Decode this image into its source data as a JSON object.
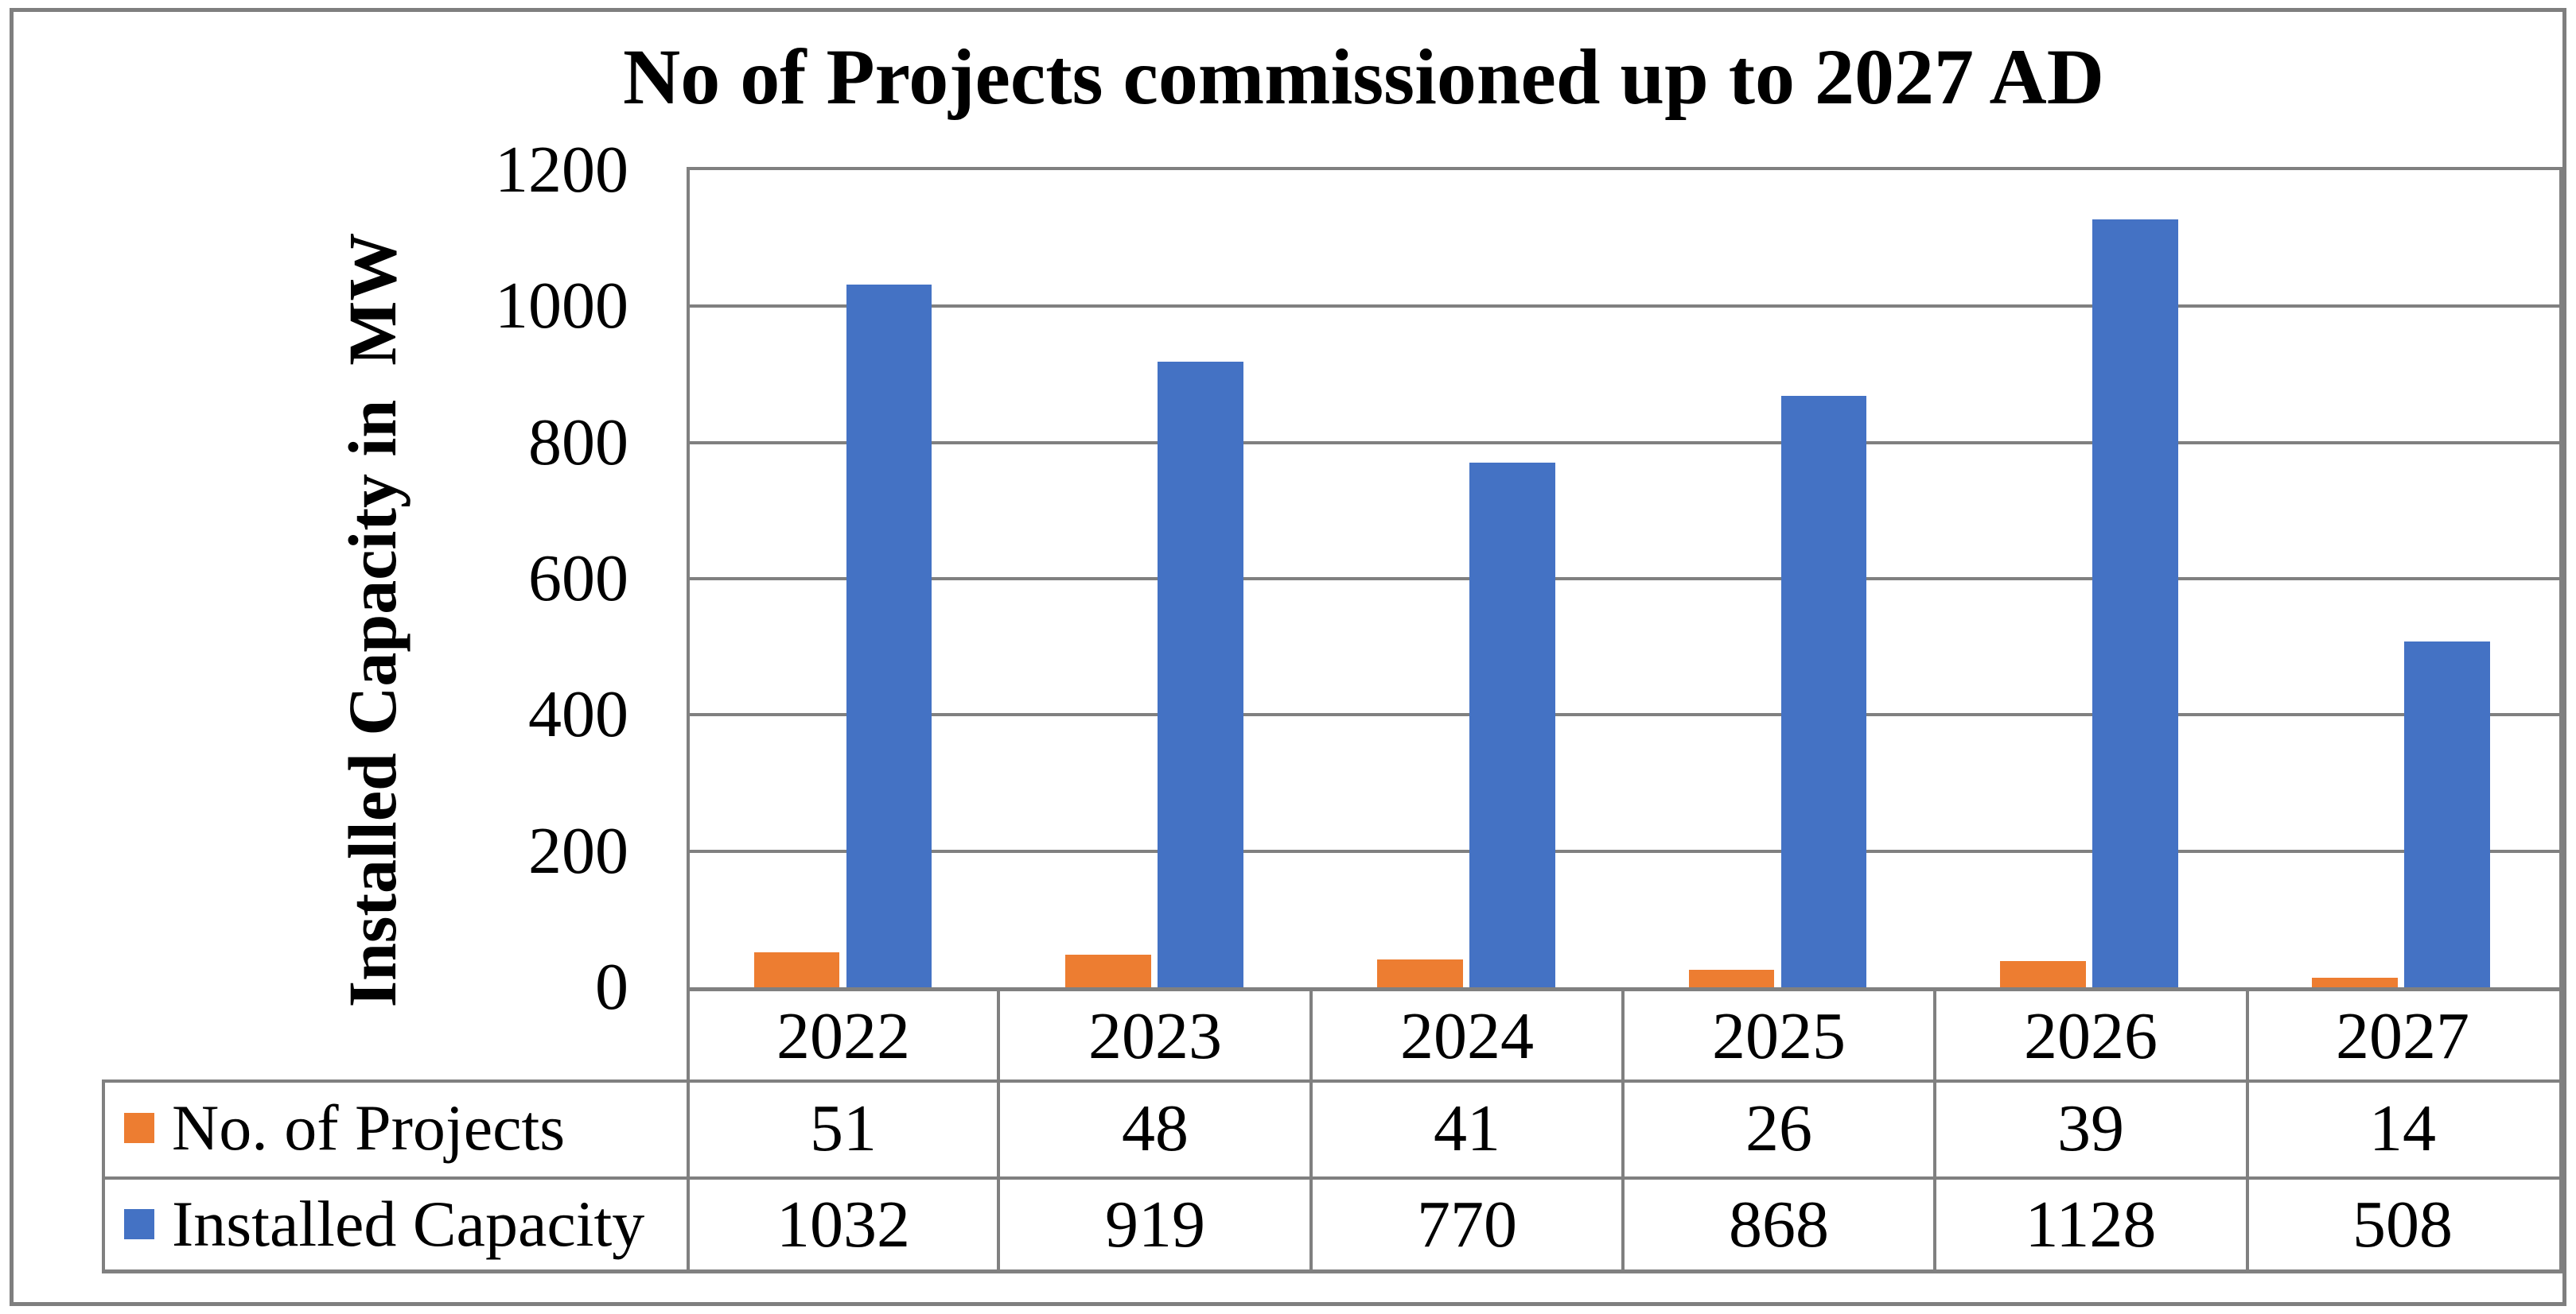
{
  "title": "No of Projects commissioned up to 2027 AD",
  "y_axis": {
    "title": "Installed Capacity in  MW",
    "ticks": [
      "1200",
      "1000",
      "800",
      "600",
      "400",
      "200",
      "0"
    ]
  },
  "table": {
    "rows": [
      {
        "label": "No. of Projects",
        "key_color": "#ED7D31",
        "values": [
          "51",
          "48",
          "41",
          "26",
          "39",
          "14"
        ]
      },
      {
        "label": "Installed Capacity",
        "key_color": "#4472C4",
        "values": [
          "1032",
          "919",
          "770",
          "868",
          "1128",
          "508"
        ]
      }
    ]
  },
  "colors": {
    "projects_bar": "#ED7D31",
    "capacity_bar": "#4472C4",
    "gridline": "#808080",
    "frame_border": "#7F7F7F",
    "text": "#000000",
    "background": "#FFFFFF"
  },
  "chart_data": {
    "type": "bar",
    "title": "No of Projects commissioned up to 2027 AD",
    "categories": [
      "2022",
      "2023",
      "2024",
      "2025",
      "2026",
      "2027"
    ],
    "series": [
      {
        "name": "No. of Projects",
        "color": "#ED7D31",
        "values": [
          51,
          48,
          41,
          26,
          39,
          14
        ]
      },
      {
        "name": "Installed Capacity",
        "color": "#4472C4",
        "values": [
          1032,
          919,
          770,
          868,
          1128,
          508
        ]
      }
    ],
    "xlabel": "",
    "ylabel": "Installed Capacity in  MW",
    "ylim": [
      0,
      1200
    ],
    "ytick_step": 200,
    "grid": true,
    "legend_position": "data-table-left"
  }
}
